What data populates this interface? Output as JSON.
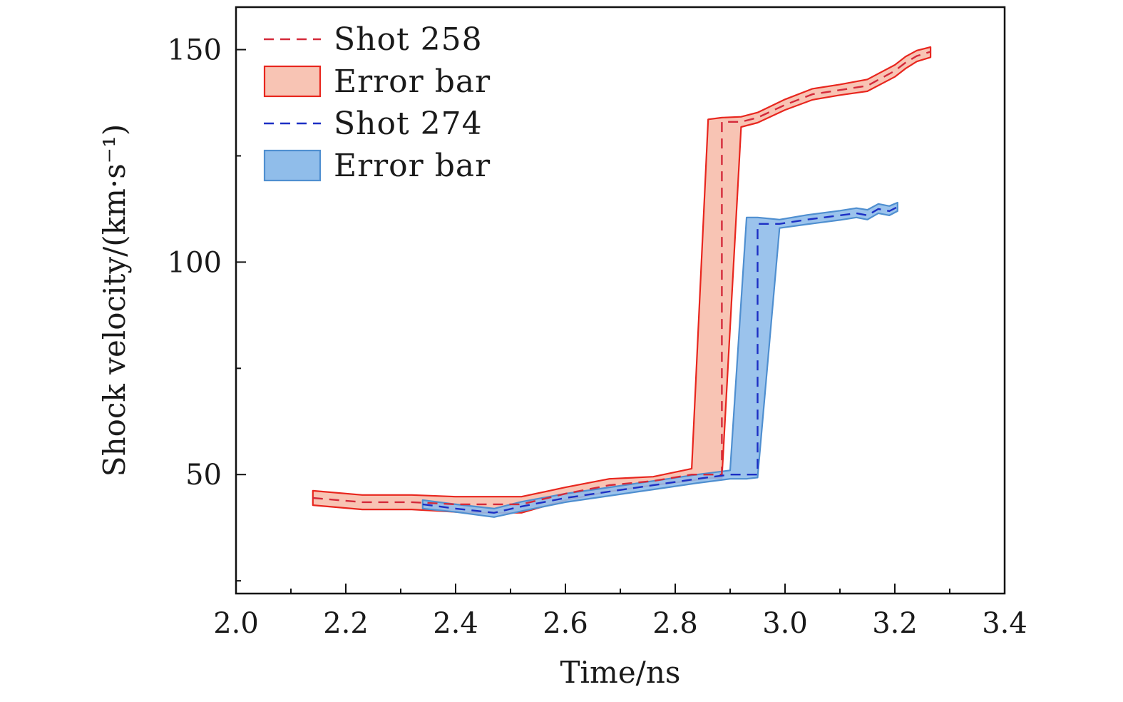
{
  "chart_data": {
    "type": "line",
    "title": "",
    "xlabel": "Time/ns",
    "ylabel": "Shock velocity/(km·s⁻¹)",
    "xlim": [
      2.0,
      3.4
    ],
    "ylim": [
      22,
      160
    ],
    "x_ticks": [
      {
        "value": 2.0,
        "label": "2.0"
      },
      {
        "value": 2.2,
        "label": "2.2"
      },
      {
        "value": 2.4,
        "label": "2.4"
      },
      {
        "value": 2.6,
        "label": "2.6"
      },
      {
        "value": 2.8,
        "label": "2.8"
      },
      {
        "value": 3.0,
        "label": "3.0"
      },
      {
        "value": 3.2,
        "label": "3.2"
      },
      {
        "value": 3.4,
        "label": "3.4"
      }
    ],
    "x_minor_ticks": [
      2.1,
      2.3,
      2.5,
      2.7,
      2.9,
      3.1,
      3.3
    ],
    "y_ticks": [
      {
        "value": 50,
        "label": "50"
      },
      {
        "value": 100,
        "label": "100"
      },
      {
        "value": 150,
        "label": "150"
      }
    ],
    "y_minor_ticks": [
      25,
      75,
      125
    ],
    "grid": false,
    "legend_position": "top-left",
    "legend": [
      {
        "label": "Shot 258",
        "kind": "line",
        "color": "#d42a3a"
      },
      {
        "label": "Error bar",
        "kind": "band",
        "fill": "#f8c4b4",
        "stroke": "#e8261e"
      },
      {
        "label": "Shot 274",
        "kind": "line",
        "color": "#1c2fc4"
      },
      {
        "label": "Error bar",
        "kind": "band",
        "fill": "#90bdea",
        "stroke": "#4f8fd0"
      }
    ],
    "series": [
      {
        "name": "Shot 258",
        "line_color": "#d42a3a",
        "band_fill": "#f8c4b4",
        "band_stroke": "#e8261e",
        "x": [
          2.14,
          2.23,
          2.32,
          2.4,
          2.46,
          2.52,
          2.6,
          2.68,
          2.76,
          2.83,
          2.86,
          2.885,
          2.885,
          2.92,
          2.95,
          3.0,
          3.05,
          3.1,
          3.15,
          3.2,
          3.22,
          3.24,
          3.265
        ],
        "y": [
          44.5,
          43.5,
          43.5,
          43.0,
          43.0,
          43.0,
          45.5,
          47.5,
          48.5,
          50.0,
          50.0,
          50.0,
          133.0,
          133.0,
          134.0,
          137.0,
          139.5,
          140.5,
          141.5,
          145.0,
          147.0,
          148.5,
          149.5
        ],
        "y_low": [
          42.8,
          41.8,
          41.8,
          41.2,
          41.0,
          41.0,
          44.0,
          46.0,
          47.5,
          48.6,
          49.2,
          49.2,
          49.2,
          131.8,
          132.8,
          135.8,
          138.2,
          139.3,
          140.2,
          143.6,
          145.6,
          147.2,
          148.2
        ],
        "y_high": [
          46.2,
          45.2,
          45.2,
          44.8,
          44.8,
          44.8,
          47.0,
          49.0,
          49.5,
          51.4,
          133.6,
          134.0,
          134.0,
          134.2,
          135.2,
          138.3,
          140.8,
          141.8,
          143.0,
          146.4,
          148.4,
          149.8,
          150.6
        ]
      },
      {
        "name": "Shot 274",
        "line_color": "#1c2fc4",
        "band_fill": "#90bdea",
        "band_stroke": "#4f8fd0",
        "x": [
          2.34,
          2.4,
          2.47,
          2.52,
          2.6,
          2.68,
          2.76,
          2.84,
          2.9,
          2.93,
          2.95,
          2.95,
          2.99,
          3.04,
          3.1,
          3.13,
          3.15,
          3.17,
          3.19,
          3.205
        ],
        "y": [
          43.0,
          42.0,
          41.0,
          42.5,
          44.5,
          46.0,
          47.5,
          49.0,
          50.0,
          50.0,
          50.0,
          109.0,
          109.0,
          110.0,
          111.0,
          111.5,
          111.0,
          112.5,
          112.0,
          113.0
        ],
        "y_low": [
          42.0,
          41.2,
          40.0,
          41.4,
          43.5,
          45.0,
          46.5,
          48.0,
          49.0,
          49.0,
          49.3,
          49.3,
          108.0,
          108.9,
          109.9,
          110.5,
          110.0,
          111.5,
          111.0,
          112.0
        ],
        "y_high": [
          44.0,
          43.0,
          42.0,
          43.6,
          45.5,
          47.0,
          48.5,
          50.0,
          51.0,
          110.5,
          110.5,
          110.5,
          110.0,
          111.1,
          112.1,
          112.7,
          112.3,
          113.7,
          113.2,
          114.0
        ]
      }
    ]
  }
}
